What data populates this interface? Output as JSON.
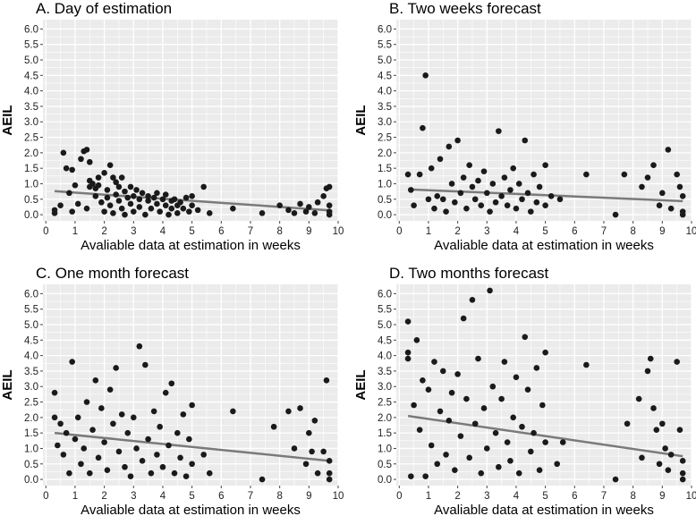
{
  "colors": {
    "panel_bg": "#ebebeb",
    "grid": "#ffffff",
    "point": "#1a1a1a",
    "trend": "#7a7a7a"
  },
  "chart_data": [
    {
      "type": "scatter",
      "title": "A. Day of estimation",
      "xlabel": "Avaliable data at estimation in weeks",
      "ylabel": "AEIL",
      "xlim": [
        -0.1,
        10
      ],
      "ylim": [
        -0.2,
        6.3
      ],
      "xticks": [
        0,
        1,
        2,
        3,
        4,
        5,
        6,
        7,
        8,
        9,
        10
      ],
      "yticks": [
        "0.0",
        "0.5",
        "1.0",
        "1.5",
        "2.0",
        "2.5",
        "3.0",
        "3.5",
        "4.0",
        "4.5",
        "5.0",
        "5.5",
        "6.0"
      ],
      "trend": [
        [
          0.3,
          0.76
        ],
        [
          9.7,
          0.14
        ]
      ],
      "points": [
        [
          0.3,
          0.05
        ],
        [
          0.3,
          0.15
        ],
        [
          0.5,
          0.3
        ],
        [
          0.6,
          2.0
        ],
        [
          0.7,
          1.5
        ],
        [
          0.8,
          0.7
        ],
        [
          0.9,
          1.45
        ],
        [
          0.9,
          0.1
        ],
        [
          1.0,
          0.95
        ],
        [
          1.1,
          0.35
        ],
        [
          1.2,
          1.8
        ],
        [
          1.3,
          2.05
        ],
        [
          1.4,
          2.1
        ],
        [
          1.4,
          0.2
        ],
        [
          1.5,
          1.7
        ],
        [
          1.5,
          1.1
        ],
        [
          1.5,
          0.9
        ],
        [
          1.6,
          1.0
        ],
        [
          1.7,
          0.6
        ],
        [
          1.7,
          0.85
        ],
        [
          1.8,
          1.2
        ],
        [
          1.8,
          0.95
        ],
        [
          1.9,
          0.4
        ],
        [
          2.0,
          1.35
        ],
        [
          2.0,
          0.1
        ],
        [
          2.1,
          0.8
        ],
        [
          2.1,
          0.55
        ],
        [
          2.2,
          1.6
        ],
        [
          2.2,
          0.3
        ],
        [
          2.3,
          1.2
        ],
        [
          2.3,
          0.05
        ],
        [
          2.4,
          0.65
        ],
        [
          2.4,
          1.05
        ],
        [
          2.5,
          0.45
        ],
        [
          2.5,
          0.9
        ],
        [
          2.6,
          0.2
        ],
        [
          2.6,
          1.2
        ],
        [
          2.7,
          0.75
        ],
        [
          2.7,
          0.0
        ],
        [
          2.8,
          0.55
        ],
        [
          2.9,
          0.35
        ],
        [
          2.9,
          0.9
        ],
        [
          3.0,
          0.6
        ],
        [
          3.0,
          0.1
        ],
        [
          3.1,
          0.8
        ],
        [
          3.2,
          0.25
        ],
        [
          3.2,
          0.5
        ],
        [
          3.3,
          0.7
        ],
        [
          3.4,
          0.0
        ],
        [
          3.5,
          0.45
        ],
        [
          3.5,
          0.6
        ],
        [
          3.6,
          0.2
        ],
        [
          3.7,
          0.55
        ],
        [
          3.8,
          0.35
        ],
        [
          3.8,
          0.7
        ],
        [
          3.9,
          0.1
        ],
        [
          4.0,
          0.5
        ],
        [
          4.1,
          0.3
        ],
        [
          4.1,
          0.65
        ],
        [
          4.2,
          0.0
        ],
        [
          4.3,
          0.45
        ],
        [
          4.3,
          0.2
        ],
        [
          4.4,
          0.5
        ],
        [
          4.5,
          0.3
        ],
        [
          4.5,
          0.05
        ],
        [
          4.6,
          0.4
        ],
        [
          4.7,
          0.2
        ],
        [
          4.8,
          0.55
        ],
        [
          4.9,
          0.1
        ],
        [
          5.0,
          0.6
        ],
        [
          5.0,
          0.3
        ],
        [
          5.2,
          0.15
        ],
        [
          5.4,
          0.9
        ],
        [
          5.6,
          0.05
        ],
        [
          6.4,
          0.2
        ],
        [
          7.4,
          0.05
        ],
        [
          8.0,
          0.3
        ],
        [
          8.3,
          0.15
        ],
        [
          8.5,
          0.05
        ],
        [
          8.7,
          0.35
        ],
        [
          8.9,
          0.1
        ],
        [
          9.0,
          0.25
        ],
        [
          9.2,
          0.05
        ],
        [
          9.3,
          0.4
        ],
        [
          9.5,
          0.6
        ],
        [
          9.6,
          0.85
        ],
        [
          9.7,
          0.9
        ],
        [
          9.7,
          0.3
        ],
        [
          9.7,
          0.1
        ],
        [
          9.7,
          0.0
        ]
      ]
    },
    {
      "type": "scatter",
      "title": "B. Two weeks forecast",
      "xlabel": "Avaliable data at estimation in weeks",
      "ylabel": "AEIL",
      "xlim": [
        -0.1,
        10
      ],
      "ylim": [
        -0.2,
        6.3
      ],
      "xticks": [
        0,
        1,
        2,
        3,
        4,
        5,
        6,
        7,
        8,
        9,
        10
      ],
      "yticks": [
        "0.0",
        "0.5",
        "1.0",
        "1.5",
        "2.0",
        "2.5",
        "3.0",
        "3.5",
        "4.0",
        "4.5",
        "5.0",
        "5.5",
        "6.0"
      ],
      "trend": [
        [
          0.3,
          0.82
        ],
        [
          9.7,
          0.44
        ]
      ],
      "points": [
        [
          0.3,
          1.3
        ],
        [
          0.4,
          0.8
        ],
        [
          0.5,
          0.3
        ],
        [
          0.7,
          1.3
        ],
        [
          0.8,
          2.8
        ],
        [
          0.9,
          4.5
        ],
        [
          1.0,
          0.5
        ],
        [
          1.1,
          1.5
        ],
        [
          1.2,
          0.2
        ],
        [
          1.3,
          0.6
        ],
        [
          1.4,
          1.8
        ],
        [
          1.5,
          0.5
        ],
        [
          1.6,
          0.1
        ],
        [
          1.7,
          2.2
        ],
        [
          1.8,
          1.0
        ],
        [
          1.9,
          0.4
        ],
        [
          2.0,
          2.4
        ],
        [
          2.1,
          0.7
        ],
        [
          2.2,
          1.2
        ],
        [
          2.3,
          0.2
        ],
        [
          2.4,
          1.6
        ],
        [
          2.5,
          0.9
        ],
        [
          2.6,
          0.5
        ],
        [
          2.7,
          1.1
        ],
        [
          2.8,
          0.3
        ],
        [
          2.9,
          1.4
        ],
        [
          3.0,
          0.7
        ],
        [
          3.1,
          0.1
        ],
        [
          3.2,
          1.0
        ],
        [
          3.3,
          0.4
        ],
        [
          3.4,
          2.7
        ],
        [
          3.5,
          0.6
        ],
        [
          3.6,
          1.2
        ],
        [
          3.7,
          0.3
        ],
        [
          3.8,
          0.8
        ],
        [
          3.9,
          1.5
        ],
        [
          4.0,
          0.2
        ],
        [
          4.1,
          1.0
        ],
        [
          4.2,
          0.5
        ],
        [
          4.3,
          2.4
        ],
        [
          4.4,
          0.7
        ],
        [
          4.5,
          0.1
        ],
        [
          4.6,
          1.3
        ],
        [
          4.7,
          0.4
        ],
        [
          4.8,
          0.9
        ],
        [
          5.0,
          1.6
        ],
        [
          5.0,
          0.3
        ],
        [
          5.2,
          0.6
        ],
        [
          5.5,
          0.5
        ],
        [
          6.4,
          1.3
        ],
        [
          7.4,
          0.0
        ],
        [
          7.7,
          1.3
        ],
        [
          8.3,
          0.9
        ],
        [
          8.5,
          1.2
        ],
        [
          8.7,
          1.6
        ],
        [
          8.9,
          0.3
        ],
        [
          9.0,
          0.7
        ],
        [
          9.2,
          2.1
        ],
        [
          9.3,
          0.2
        ],
        [
          9.5,
          1.3
        ],
        [
          9.6,
          0.9
        ],
        [
          9.7,
          0.6
        ],
        [
          9.7,
          0.1
        ],
        [
          9.7,
          0.0
        ]
      ]
    },
    {
      "type": "scatter",
      "title": "C. One month forecast",
      "xlabel": "Avaliable data at estimation in weeks",
      "ylabel": "AEIL",
      "xlim": [
        -0.1,
        10
      ],
      "ylim": [
        -0.2,
        6.3
      ],
      "xticks": [
        0,
        1,
        2,
        3,
        4,
        5,
        6,
        7,
        8,
        9,
        10
      ],
      "yticks": [
        "0.0",
        "0.5",
        "1.0",
        "1.5",
        "2.0",
        "2.5",
        "3.0",
        "3.5",
        "4.0",
        "4.5",
        "5.0",
        "5.5",
        "6.0"
      ],
      "trend": [
        [
          0.3,
          1.5
        ],
        [
          9.7,
          0.6
        ]
      ],
      "points": [
        [
          0.3,
          2.8
        ],
        [
          0.3,
          2.0
        ],
        [
          0.4,
          1.1
        ],
        [
          0.5,
          1.8
        ],
        [
          0.6,
          0.8
        ],
        [
          0.7,
          1.5
        ],
        [
          0.8,
          0.2
        ],
        [
          0.9,
          3.8
        ],
        [
          1.0,
          1.3
        ],
        [
          1.1,
          2.0
        ],
        [
          1.2,
          0.5
        ],
        [
          1.3,
          1.0
        ],
        [
          1.4,
          2.5
        ],
        [
          1.5,
          0.2
        ],
        [
          1.6,
          1.6
        ],
        [
          1.7,
          3.2
        ],
        [
          1.8,
          0.7
        ],
        [
          1.9,
          2.3
        ],
        [
          2.0,
          1.2
        ],
        [
          2.1,
          0.3
        ],
        [
          2.2,
          2.9
        ],
        [
          2.3,
          1.8
        ],
        [
          2.4,
          3.6
        ],
        [
          2.5,
          0.9
        ],
        [
          2.6,
          2.1
        ],
        [
          2.7,
          0.4
        ],
        [
          2.8,
          1.5
        ],
        [
          2.9,
          0.1
        ],
        [
          3.0,
          2.0
        ],
        [
          3.1,
          1.0
        ],
        [
          3.2,
          4.3
        ],
        [
          3.3,
          0.6
        ],
        [
          3.4,
          3.7
        ],
        [
          3.5,
          1.3
        ],
        [
          3.6,
          0.2
        ],
        [
          3.7,
          2.2
        ],
        [
          3.8,
          0.8
        ],
        [
          3.9,
          1.7
        ],
        [
          4.0,
          0.4
        ],
        [
          4.1,
          2.8
        ],
        [
          4.2,
          1.1
        ],
        [
          4.3,
          3.1
        ],
        [
          4.4,
          0.2
        ],
        [
          4.5,
          1.5
        ],
        [
          4.6,
          0.7
        ],
        [
          4.7,
          2.1
        ],
        [
          4.8,
          0.1
        ],
        [
          4.9,
          1.3
        ],
        [
          5.0,
          2.4
        ],
        [
          5.0,
          0.5
        ],
        [
          5.4,
          0.8
        ],
        [
          5.6,
          0.2
        ],
        [
          6.4,
          2.2
        ],
        [
          7.4,
          0.0
        ],
        [
          7.8,
          1.7
        ],
        [
          8.3,
          2.2
        ],
        [
          8.5,
          1.0
        ],
        [
          8.7,
          2.3
        ],
        [
          8.9,
          0.5
        ],
        [
          9.0,
          1.5
        ],
        [
          9.1,
          0.9
        ],
        [
          9.2,
          1.9
        ],
        [
          9.3,
          0.2
        ],
        [
          9.5,
          0.9
        ],
        [
          9.6,
          3.2
        ],
        [
          9.7,
          0.6
        ],
        [
          9.7,
          0.2
        ],
        [
          9.7,
          0.0
        ]
      ]
    },
    {
      "type": "scatter",
      "title": "D. Two months forecast",
      "xlabel": "Avaliable data at estimation in weeks",
      "ylabel": "AEIL",
      "xlim": [
        -0.1,
        10
      ],
      "ylim": [
        -0.2,
        6.3
      ],
      "xticks": [
        0,
        1,
        2,
        3,
        4,
        5,
        6,
        7,
        8,
        9,
        10
      ],
      "yticks": [
        "0.0",
        "0.5",
        "1.0",
        "1.5",
        "2.0",
        "2.5",
        "3.0",
        "3.5",
        "4.0",
        "4.5",
        "5.0",
        "5.5",
        "6.0"
      ],
      "trend": [
        [
          0.3,
          2.05
        ],
        [
          9.7,
          0.75
        ]
      ],
      "points": [
        [
          0.3,
          5.1
        ],
        [
          0.3,
          4.1
        ],
        [
          0.3,
          3.9
        ],
        [
          0.4,
          0.1
        ],
        [
          0.5,
          2.4
        ],
        [
          0.6,
          4.5
        ],
        [
          0.7,
          1.6
        ],
        [
          0.8,
          3.2
        ],
        [
          0.9,
          0.1
        ],
        [
          1.0,
          2.9
        ],
        [
          1.1,
          1.1
        ],
        [
          1.2,
          3.8
        ],
        [
          1.3,
          0.5
        ],
        [
          1.4,
          2.2
        ],
        [
          1.5,
          3.5
        ],
        [
          1.6,
          0.8
        ],
        [
          1.7,
          1.9
        ],
        [
          1.8,
          2.8
        ],
        [
          1.9,
          0.3
        ],
        [
          2.0,
          3.4
        ],
        [
          2.1,
          1.4
        ],
        [
          2.2,
          5.2
        ],
        [
          2.3,
          2.6
        ],
        [
          2.4,
          0.7
        ],
        [
          2.5,
          5.8
        ],
        [
          2.6,
          1.8
        ],
        [
          2.7,
          3.9
        ],
        [
          2.8,
          0.2
        ],
        [
          2.9,
          2.3
        ],
        [
          3.0,
          1.0
        ],
        [
          3.1,
          6.1
        ],
        [
          3.2,
          3.0
        ],
        [
          3.3,
          1.5
        ],
        [
          3.4,
          0.4
        ],
        [
          3.5,
          2.6
        ],
        [
          3.6,
          3.8
        ],
        [
          3.7,
          1.2
        ],
        [
          3.8,
          0.6
        ],
        [
          3.9,
          2.0
        ],
        [
          4.0,
          3.3
        ],
        [
          4.1,
          0.2
        ],
        [
          4.2,
          1.7
        ],
        [
          4.3,
          4.6
        ],
        [
          4.4,
          2.9
        ],
        [
          4.5,
          0.9
        ],
        [
          4.6,
          1.5
        ],
        [
          4.7,
          3.6
        ],
        [
          4.8,
          0.3
        ],
        [
          4.9,
          2.4
        ],
        [
          5.0,
          4.1
        ],
        [
          5.0,
          1.2
        ],
        [
          5.4,
          0.5
        ],
        [
          5.6,
          1.2
        ],
        [
          6.4,
          3.7
        ],
        [
          7.4,
          0.0
        ],
        [
          7.8,
          1.8
        ],
        [
          8.2,
          2.6
        ],
        [
          8.3,
          0.7
        ],
        [
          8.5,
          3.5
        ],
        [
          8.6,
          3.9
        ],
        [
          8.7,
          2.3
        ],
        [
          8.8,
          1.6
        ],
        [
          8.9,
          0.5
        ],
        [
          9.0,
          1.8
        ],
        [
          9.1,
          1.0
        ],
        [
          9.2,
          0.3
        ],
        [
          9.3,
          0.8
        ],
        [
          9.5,
          3.8
        ],
        [
          9.6,
          1.6
        ],
        [
          9.7,
          0.6
        ],
        [
          9.7,
          0.2
        ],
        [
          9.7,
          0.0
        ]
      ]
    }
  ]
}
